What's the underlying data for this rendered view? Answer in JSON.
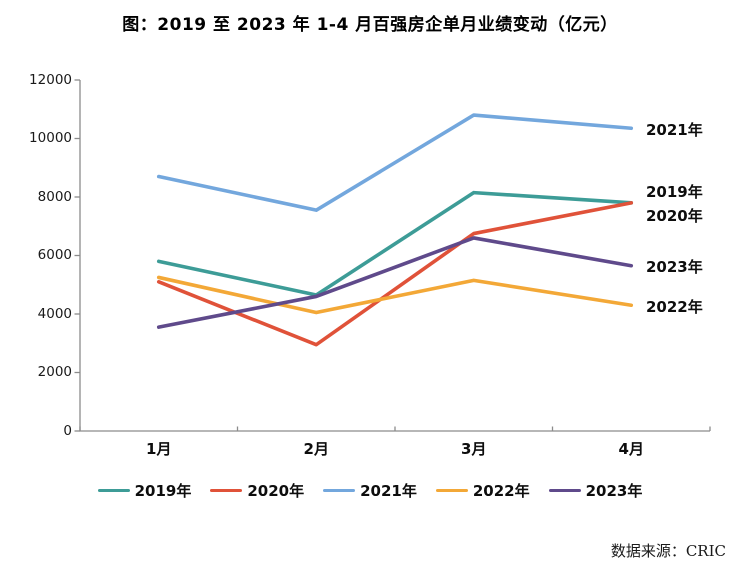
{
  "title": "图：2019 至 2023 年 1-4 月百强房企单月业绩变动（亿元）",
  "source": "数据来源：CRIC",
  "axis_color": "#8C8C8C",
  "chart_data": {
    "type": "line",
    "title": "图：2019 至 2023 年 1-4 月百强房企单月业绩变动（亿元）",
    "categories": [
      "1月",
      "2月",
      "3月",
      "4月"
    ],
    "series": [
      {
        "name": "2019年",
        "color": "#3D9C97",
        "values": [
          5800,
          4650,
          8150,
          7800
        ]
      },
      {
        "name": "2020年",
        "color": "#E05239",
        "values": [
          5100,
          2950,
          6750,
          7800
        ]
      },
      {
        "name": "2021年",
        "color": "#73A7DD",
        "values": [
          8700,
          7550,
          10800,
          10350
        ]
      },
      {
        "name": "2022年",
        "color": "#F3A837",
        "values": [
          5250,
          4050,
          5150,
          4300
        ]
      },
      {
        "name": "2023年",
        "color": "#5F4A8B",
        "values": [
          3550,
          4600,
          6600,
          5650
        ]
      }
    ],
    "xlabel": "",
    "ylabel": "",
    "ylim": [
      0,
      12000
    ],
    "ytick_step": 2000,
    "yticks": [
      "0",
      "2000",
      "4000",
      "6000",
      "8000",
      "10000",
      "12000"
    ],
    "grid": false,
    "legend_position": "bottom",
    "line_end_labels": [
      "2021年",
      "2019年",
      "2020年",
      "2023年",
      "2022年"
    ],
    "unit": "亿元"
  }
}
